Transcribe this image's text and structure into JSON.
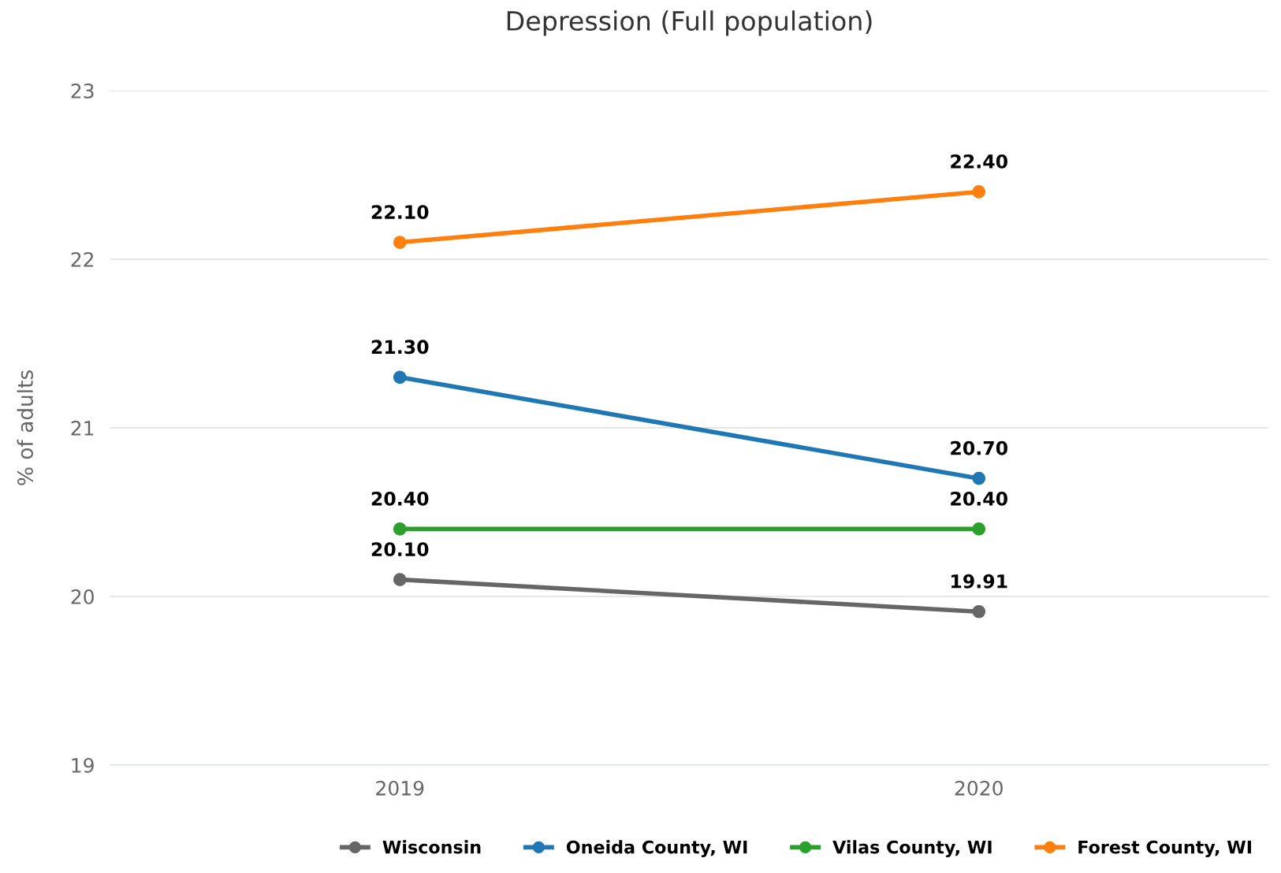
{
  "chart_data": {
    "type": "line",
    "title": "Depression (Full population)",
    "ylabel": "% of adults",
    "categories": [
      "2019",
      "2020"
    ],
    "series": [
      {
        "name": "Wisconsin",
        "color": "#666666",
        "values": [
          20.1,
          19.91
        ],
        "value_labels": [
          "20.10",
          "19.91"
        ]
      },
      {
        "name": "Oneida County, WI",
        "color": "#1f77b4",
        "values": [
          21.3,
          20.7
        ],
        "value_labels": [
          "21.30",
          "20.70"
        ]
      },
      {
        "name": "Vilas County, WI",
        "color": "#2ca02c",
        "values": [
          20.4,
          20.4
        ],
        "value_labels": [
          "20.40",
          "20.40"
        ]
      },
      {
        "name": "Forest County, WI",
        "color": "#ff7f0e",
        "values": [
          22.1,
          22.4
        ],
        "value_labels": [
          "22.10",
          "22.40"
        ]
      }
    ],
    "ylim": [
      19,
      23
    ],
    "yticks": [
      19,
      20,
      21,
      22,
      23
    ],
    "grid": "y",
    "legend": "bottom",
    "marker": "circle",
    "line_style": "solid"
  }
}
